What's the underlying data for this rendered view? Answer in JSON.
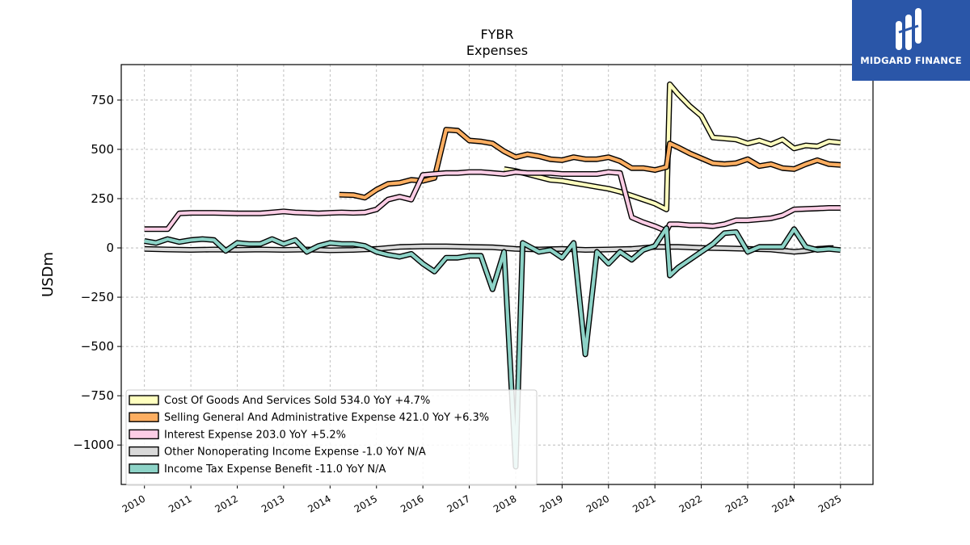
{
  "brand": {
    "name": "MIDGARD FINANCE",
    "bg_color": "#2a56a8"
  },
  "chart_data": {
    "type": "line",
    "title": "FYBR",
    "subtitle": "Expenses",
    "xlabel": "",
    "ylabel": "USDm",
    "xlim": [
      2009.5,
      2025.7
    ],
    "ylim": [
      -1200,
      930
    ],
    "x_ticks": [
      "2010",
      "2011",
      "2012",
      "2013",
      "2014",
      "2015",
      "2016",
      "2017",
      "2018",
      "2019",
      "2020",
      "2021",
      "2022",
      "2023",
      "2024",
      "2025"
    ],
    "y_ticks": [
      750,
      500,
      250,
      0,
      -250,
      -500,
      -750,
      -1000
    ],
    "y_tick_labels": [
      "750",
      "500",
      "250",
      "0",
      "−250",
      "−500",
      "−750",
      "−1000"
    ],
    "grid": true,
    "legend_position": "lower-left",
    "series": [
      {
        "name": "Cost Of Goods And Services Sold",
        "legend_label": "Cost Of Goods And Services Sold  534.0 YoY +4.7%",
        "color": "#ffffbf",
        "points": [
          [
            2017.75,
            400
          ],
          [
            2018.0,
            390
          ],
          [
            2018.25,
            375
          ],
          [
            2018.5,
            360
          ],
          [
            2018.75,
            345
          ],
          [
            2019.0,
            340
          ],
          [
            2019.25,
            330
          ],
          [
            2019.5,
            320
          ],
          [
            2019.75,
            310
          ],
          [
            2020.0,
            300
          ],
          [
            2020.25,
            285
          ],
          [
            2020.5,
            265
          ],
          [
            2020.75,
            245
          ],
          [
            2021.0,
            225
          ],
          [
            2021.25,
            195
          ],
          [
            2021.32,
            830
          ],
          [
            2021.5,
            780
          ],
          [
            2021.75,
            720
          ],
          [
            2022.0,
            670
          ],
          [
            2022.25,
            560
          ],
          [
            2022.5,
            555
          ],
          [
            2022.75,
            550
          ],
          [
            2023.0,
            530
          ],
          [
            2023.25,
            545
          ],
          [
            2023.5,
            525
          ],
          [
            2023.75,
            550
          ],
          [
            2024.0,
            505
          ],
          [
            2024.25,
            520
          ],
          [
            2024.5,
            515
          ],
          [
            2024.75,
            540
          ],
          [
            2025.0,
            534
          ]
        ]
      },
      {
        "name": "Selling General And Administrative Expense",
        "legend_label": "Selling General And Administrative Expense  421.0 YoY +6.3%",
        "color": "#fdae61",
        "points": [
          [
            2014.2,
            270
          ],
          [
            2014.5,
            268
          ],
          [
            2014.75,
            255
          ],
          [
            2015.0,
            295
          ],
          [
            2015.25,
            325
          ],
          [
            2015.5,
            330
          ],
          [
            2015.75,
            345
          ],
          [
            2016.0,
            340
          ],
          [
            2016.25,
            355
          ],
          [
            2016.5,
            600
          ],
          [
            2016.75,
            595
          ],
          [
            2017.0,
            545
          ],
          [
            2017.25,
            540
          ],
          [
            2017.5,
            530
          ],
          [
            2017.75,
            490
          ],
          [
            2018.0,
            460
          ],
          [
            2018.25,
            475
          ],
          [
            2018.5,
            465
          ],
          [
            2018.75,
            450
          ],
          [
            2019.0,
            445
          ],
          [
            2019.25,
            460
          ],
          [
            2019.5,
            450
          ],
          [
            2019.75,
            450
          ],
          [
            2020.0,
            460
          ],
          [
            2020.25,
            440
          ],
          [
            2020.5,
            405
          ],
          [
            2020.75,
            405
          ],
          [
            2021.0,
            395
          ],
          [
            2021.25,
            410
          ],
          [
            2021.32,
            530
          ],
          [
            2021.5,
            510
          ],
          [
            2021.75,
            480
          ],
          [
            2022.0,
            455
          ],
          [
            2022.25,
            430
          ],
          [
            2022.5,
            425
          ],
          [
            2022.75,
            430
          ],
          [
            2023.0,
            450
          ],
          [
            2023.25,
            415
          ],
          [
            2023.5,
            425
          ],
          [
            2023.75,
            405
          ],
          [
            2024.0,
            400
          ],
          [
            2024.25,
            425
          ],
          [
            2024.5,
            445
          ],
          [
            2024.75,
            425
          ],
          [
            2025.0,
            421
          ]
        ]
      },
      {
        "name": "Interest Expense",
        "legend_label": "Interest Expense  203.0 YoY +5.2%",
        "color": "#fccde5",
        "points": [
          [
            2010.0,
            95
          ],
          [
            2010.5,
            95
          ],
          [
            2010.75,
            175
          ],
          [
            2011.0,
            178
          ],
          [
            2011.5,
            178
          ],
          [
            2012.0,
            175
          ],
          [
            2012.5,
            175
          ],
          [
            2012.75,
            180
          ],
          [
            2013.0,
            185
          ],
          [
            2013.25,
            180
          ],
          [
            2013.5,
            178
          ],
          [
            2013.75,
            175
          ],
          [
            2014.0,
            178
          ],
          [
            2014.25,
            180
          ],
          [
            2014.5,
            178
          ],
          [
            2014.75,
            180
          ],
          [
            2015.0,
            195
          ],
          [
            2015.25,
            245
          ],
          [
            2015.5,
            260
          ],
          [
            2015.75,
            245
          ],
          [
            2016.0,
            370
          ],
          [
            2016.25,
            375
          ],
          [
            2016.5,
            380
          ],
          [
            2016.75,
            380
          ],
          [
            2017.0,
            385
          ],
          [
            2017.25,
            385
          ],
          [
            2017.5,
            380
          ],
          [
            2017.75,
            375
          ],
          [
            2018.0,
            385
          ],
          [
            2018.25,
            380
          ],
          [
            2018.5,
            380
          ],
          [
            2018.75,
            380
          ],
          [
            2019.0,
            375
          ],
          [
            2019.25,
            375
          ],
          [
            2019.5,
            375
          ],
          [
            2019.75,
            375
          ],
          [
            2020.0,
            385
          ],
          [
            2020.25,
            380
          ],
          [
            2020.5,
            155
          ],
          [
            2020.75,
            130
          ],
          [
            2021.0,
            110
          ],
          [
            2021.25,
            85
          ],
          [
            2021.32,
            120
          ],
          [
            2021.5,
            120
          ],
          [
            2021.75,
            115
          ],
          [
            2022.0,
            115
          ],
          [
            2022.25,
            110
          ],
          [
            2022.5,
            120
          ],
          [
            2022.75,
            140
          ],
          [
            2023.0,
            140
          ],
          [
            2023.25,
            145
          ],
          [
            2023.5,
            150
          ],
          [
            2023.75,
            165
          ],
          [
            2024.0,
            195
          ],
          [
            2024.25,
            198
          ],
          [
            2024.5,
            200
          ],
          [
            2024.75,
            203
          ],
          [
            2025.0,
            203
          ]
        ]
      },
      {
        "name": "Other Nonoperating Income Expense",
        "legend_label": "Other Nonoperating Income Expense  -1.0 YoY N/A",
        "color": "#d9d9d9",
        "points": [
          [
            2010.0,
            -5
          ],
          [
            2010.5,
            -8
          ],
          [
            2011.0,
            -10
          ],
          [
            2011.5,
            -8
          ],
          [
            2012.0,
            -10
          ],
          [
            2012.5,
            -8
          ],
          [
            2013.0,
            -10
          ],
          [
            2013.5,
            -8
          ],
          [
            2014.0,
            -12
          ],
          [
            2014.5,
            -10
          ],
          [
            2015.0,
            -5
          ],
          [
            2015.5,
            5
          ],
          [
            2016.0,
            8
          ],
          [
            2016.5,
            8
          ],
          [
            2017.0,
            5
          ],
          [
            2017.5,
            3
          ],
          [
            2018.0,
            -5
          ],
          [
            2018.5,
            -8
          ],
          [
            2019.0,
            -5
          ],
          [
            2019.5,
            -10
          ],
          [
            2020.0,
            -8
          ],
          [
            2020.5,
            -5
          ],
          [
            2021.0,
            5
          ],
          [
            2021.5,
            5
          ],
          [
            2022.0,
            0
          ],
          [
            2022.5,
            -2
          ],
          [
            2023.0,
            -5
          ],
          [
            2023.5,
            -8
          ],
          [
            2024.0,
            -20
          ],
          [
            2024.25,
            -15
          ],
          [
            2024.5,
            -5
          ],
          [
            2024.75,
            -1
          ],
          [
            2024.85,
            -1
          ]
        ]
      },
      {
        "name": "Income Tax Expense Benefit",
        "legend_label": "Income Tax Expense Benefit  -11.0 YoY N/A",
        "color": "#8dd3c7",
        "points": [
          [
            2010.0,
            35
          ],
          [
            2010.25,
            25
          ],
          [
            2010.5,
            45
          ],
          [
            2010.75,
            30
          ],
          [
            2011.0,
            40
          ],
          [
            2011.25,
            45
          ],
          [
            2011.5,
            40
          ],
          [
            2011.75,
            -15
          ],
          [
            2012.0,
            25
          ],
          [
            2012.25,
            20
          ],
          [
            2012.5,
            20
          ],
          [
            2012.75,
            45
          ],
          [
            2013.0,
            20
          ],
          [
            2013.25,
            40
          ],
          [
            2013.5,
            -20
          ],
          [
            2013.75,
            10
          ],
          [
            2014.0,
            25
          ],
          [
            2014.25,
            20
          ],
          [
            2014.5,
            20
          ],
          [
            2014.75,
            10
          ],
          [
            2015.0,
            -20
          ],
          [
            2015.25,
            -35
          ],
          [
            2015.5,
            -45
          ],
          [
            2015.75,
            -30
          ],
          [
            2016.0,
            -80
          ],
          [
            2016.25,
            -120
          ],
          [
            2016.5,
            -50
          ],
          [
            2016.75,
            -50
          ],
          [
            2017.0,
            -40
          ],
          [
            2017.25,
            -40
          ],
          [
            2017.5,
            -210
          ],
          [
            2017.75,
            -20
          ],
          [
            2018.0,
            -1110
          ],
          [
            2018.15,
            25
          ],
          [
            2018.5,
            -20
          ],
          [
            2018.75,
            -10
          ],
          [
            2019.0,
            -50
          ],
          [
            2019.25,
            25
          ],
          [
            2019.5,
            -540
          ],
          [
            2019.75,
            -20
          ],
          [
            2020.0,
            -80
          ],
          [
            2020.25,
            -20
          ],
          [
            2020.5,
            -60
          ],
          [
            2020.75,
            -10
          ],
          [
            2021.0,
            10
          ],
          [
            2021.25,
            100
          ],
          [
            2021.32,
            -140
          ],
          [
            2021.5,
            -100
          ],
          [
            2021.75,
            -60
          ],
          [
            2022.0,
            -20
          ],
          [
            2022.25,
            20
          ],
          [
            2022.5,
            75
          ],
          [
            2022.75,
            80
          ],
          [
            2023.0,
            -20
          ],
          [
            2023.25,
            5
          ],
          [
            2023.5,
            5
          ],
          [
            2023.75,
            5
          ],
          [
            2024.0,
            95
          ],
          [
            2024.25,
            5
          ],
          [
            2024.5,
            -10
          ],
          [
            2024.75,
            -5
          ],
          [
            2025.0,
            -11
          ]
        ]
      }
    ]
  }
}
